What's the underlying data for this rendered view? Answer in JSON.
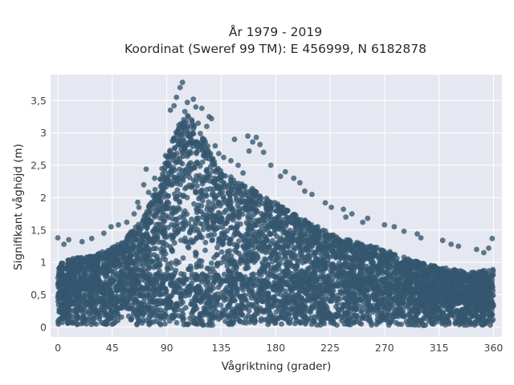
{
  "chart_data": {
    "type": "scatter",
    "title_line1": "År 1979 - 2019",
    "title_line2": "Koordinat (Sweref 99 TM): E 456999, N 6182878",
    "xlabel": "Vågriktning (grader)",
    "ylabel": "Signifikant våghöjd (m)",
    "xlim": [
      -6,
      367
    ],
    "ylim": [
      -0.15,
      3.9
    ],
    "x_ticks": [
      0,
      45,
      90,
      135,
      180,
      225,
      270,
      315,
      360
    ],
    "x_tick_labels": [
      "0",
      "45",
      "90",
      "135",
      "180",
      "225",
      "270",
      "315",
      "360"
    ],
    "y_ticks": [
      0,
      0.5,
      1,
      1.5,
      2,
      2.5,
      3,
      3.5
    ],
    "y_tick_labels": [
      "0",
      "0,5",
      "1",
      "1,5",
      "2",
      "2,5",
      "3",
      "3,5"
    ],
    "grid": true,
    "marker_color": "#34566e",
    "plot_bg": "#e5e8f0",
    "envelope": {
      "direction": [
        0,
        10,
        30,
        50,
        70,
        85,
        95,
        102,
        110,
        120,
        130,
        140,
        155,
        170,
        190,
        210,
        230,
        250,
        270,
        290,
        310,
        330,
        345,
        360
      ],
      "max_height": [
        1.0,
        1.05,
        1.12,
        1.28,
        1.65,
        2.35,
        2.9,
        3.2,
        3.3,
        2.95,
        2.55,
        2.35,
        2.2,
        2.05,
        1.8,
        1.6,
        1.4,
        1.3,
        1.2,
        1.05,
        0.95,
        0.88,
        0.85,
        0.9
      ]
    },
    "outliers": [
      {
        "x": 103,
        "y": 3.78
      },
      {
        "x": 101,
        "y": 3.7
      },
      {
        "x": 98,
        "y": 3.55
      },
      {
        "x": 112,
        "y": 3.52
      },
      {
        "x": 107,
        "y": 3.47
      },
      {
        "x": 96,
        "y": 3.42
      },
      {
        "x": 119,
        "y": 3.38
      },
      {
        "x": 93,
        "y": 3.35
      },
      {
        "x": 114,
        "y": 3.4
      },
      {
        "x": 105,
        "y": 3.33
      },
      {
        "x": 125,
        "y": 3.25
      },
      {
        "x": 127,
        "y": 3.22
      },
      {
        "x": 116,
        "y": 3.15
      },
      {
        "x": 123,
        "y": 3.1
      },
      {
        "x": 100,
        "y": 3.12
      },
      {
        "x": 137,
        "y": 2.62
      },
      {
        "x": 143,
        "y": 2.57
      },
      {
        "x": 149,
        "y": 2.5
      },
      {
        "x": 153,
        "y": 2.38
      },
      {
        "x": 146,
        "y": 2.9
      },
      {
        "x": 157,
        "y": 2.95
      },
      {
        "x": 164,
        "y": 2.93
      },
      {
        "x": 161,
        "y": 2.86
      },
      {
        "x": 167,
        "y": 2.82
      },
      {
        "x": 170,
        "y": 2.7
      },
      {
        "x": 158,
        "y": 2.72
      },
      {
        "x": 176,
        "y": 2.5
      },
      {
        "x": 188,
        "y": 2.4
      },
      {
        "x": 184,
        "y": 2.33
      },
      {
        "x": 195,
        "y": 2.3
      },
      {
        "x": 200,
        "y": 2.23
      },
      {
        "x": 204,
        "y": 2.1
      },
      {
        "x": 210,
        "y": 2.05
      },
      {
        "x": 221,
        "y": 1.92
      },
      {
        "x": 226,
        "y": 1.85
      },
      {
        "x": 236,
        "y": 1.82
      },
      {
        "x": 243,
        "y": 1.75
      },
      {
        "x": 238,
        "y": 1.7
      },
      {
        "x": 256,
        "y": 1.68
      },
      {
        "x": 252,
        "y": 1.62
      },
      {
        "x": 270,
        "y": 1.58
      },
      {
        "x": 278,
        "y": 1.55
      },
      {
        "x": 286,
        "y": 1.48
      },
      {
        "x": 297,
        "y": 1.44
      },
      {
        "x": 300,
        "y": 1.38
      },
      {
        "x": 318,
        "y": 1.34
      },
      {
        "x": 325,
        "y": 1.28
      },
      {
        "x": 331,
        "y": 1.25
      },
      {
        "x": 346,
        "y": 1.2
      },
      {
        "x": 352,
        "y": 1.15
      },
      {
        "x": 359,
        "y": 1.37
      },
      {
        "x": 356,
        "y": 1.22
      },
      {
        "x": 0,
        "y": 1.38
      },
      {
        "x": 9,
        "y": 1.35
      },
      {
        "x": 5,
        "y": 1.28
      },
      {
        "x": 20,
        "y": 1.32
      },
      {
        "x": 28,
        "y": 1.37
      },
      {
        "x": 38,
        "y": 1.45
      },
      {
        "x": 44,
        "y": 1.55
      },
      {
        "x": 50,
        "y": 1.58
      },
      {
        "x": 57,
        "y": 1.62
      },
      {
        "x": 63,
        "y": 1.75
      },
      {
        "x": 67,
        "y": 1.85
      },
      {
        "x": 71,
        "y": 2.2
      },
      {
        "x": 73,
        "y": 2.44
      },
      {
        "x": 80,
        "y": 2.3
      },
      {
        "x": 86,
        "y": 2.45
      },
      {
        "x": 89,
        "y": 2.65
      },
      {
        "x": 66,
        "y": 1.93
      },
      {
        "x": 75,
        "y": 2.08
      },
      {
        "x": 130,
        "y": 2.8
      },
      {
        "x": 133,
        "y": 2.68
      }
    ]
  }
}
